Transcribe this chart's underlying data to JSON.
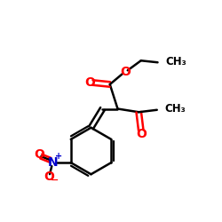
{
  "background_color": "#ffffff",
  "bond_color": "#000000",
  "oxygen_color": "#ff0000",
  "nitrogen_color": "#0000cc",
  "figsize": [
    2.5,
    2.5
  ],
  "dpi": 100,
  "xlim": [
    0,
    10
  ],
  "ylim": [
    0,
    10
  ]
}
